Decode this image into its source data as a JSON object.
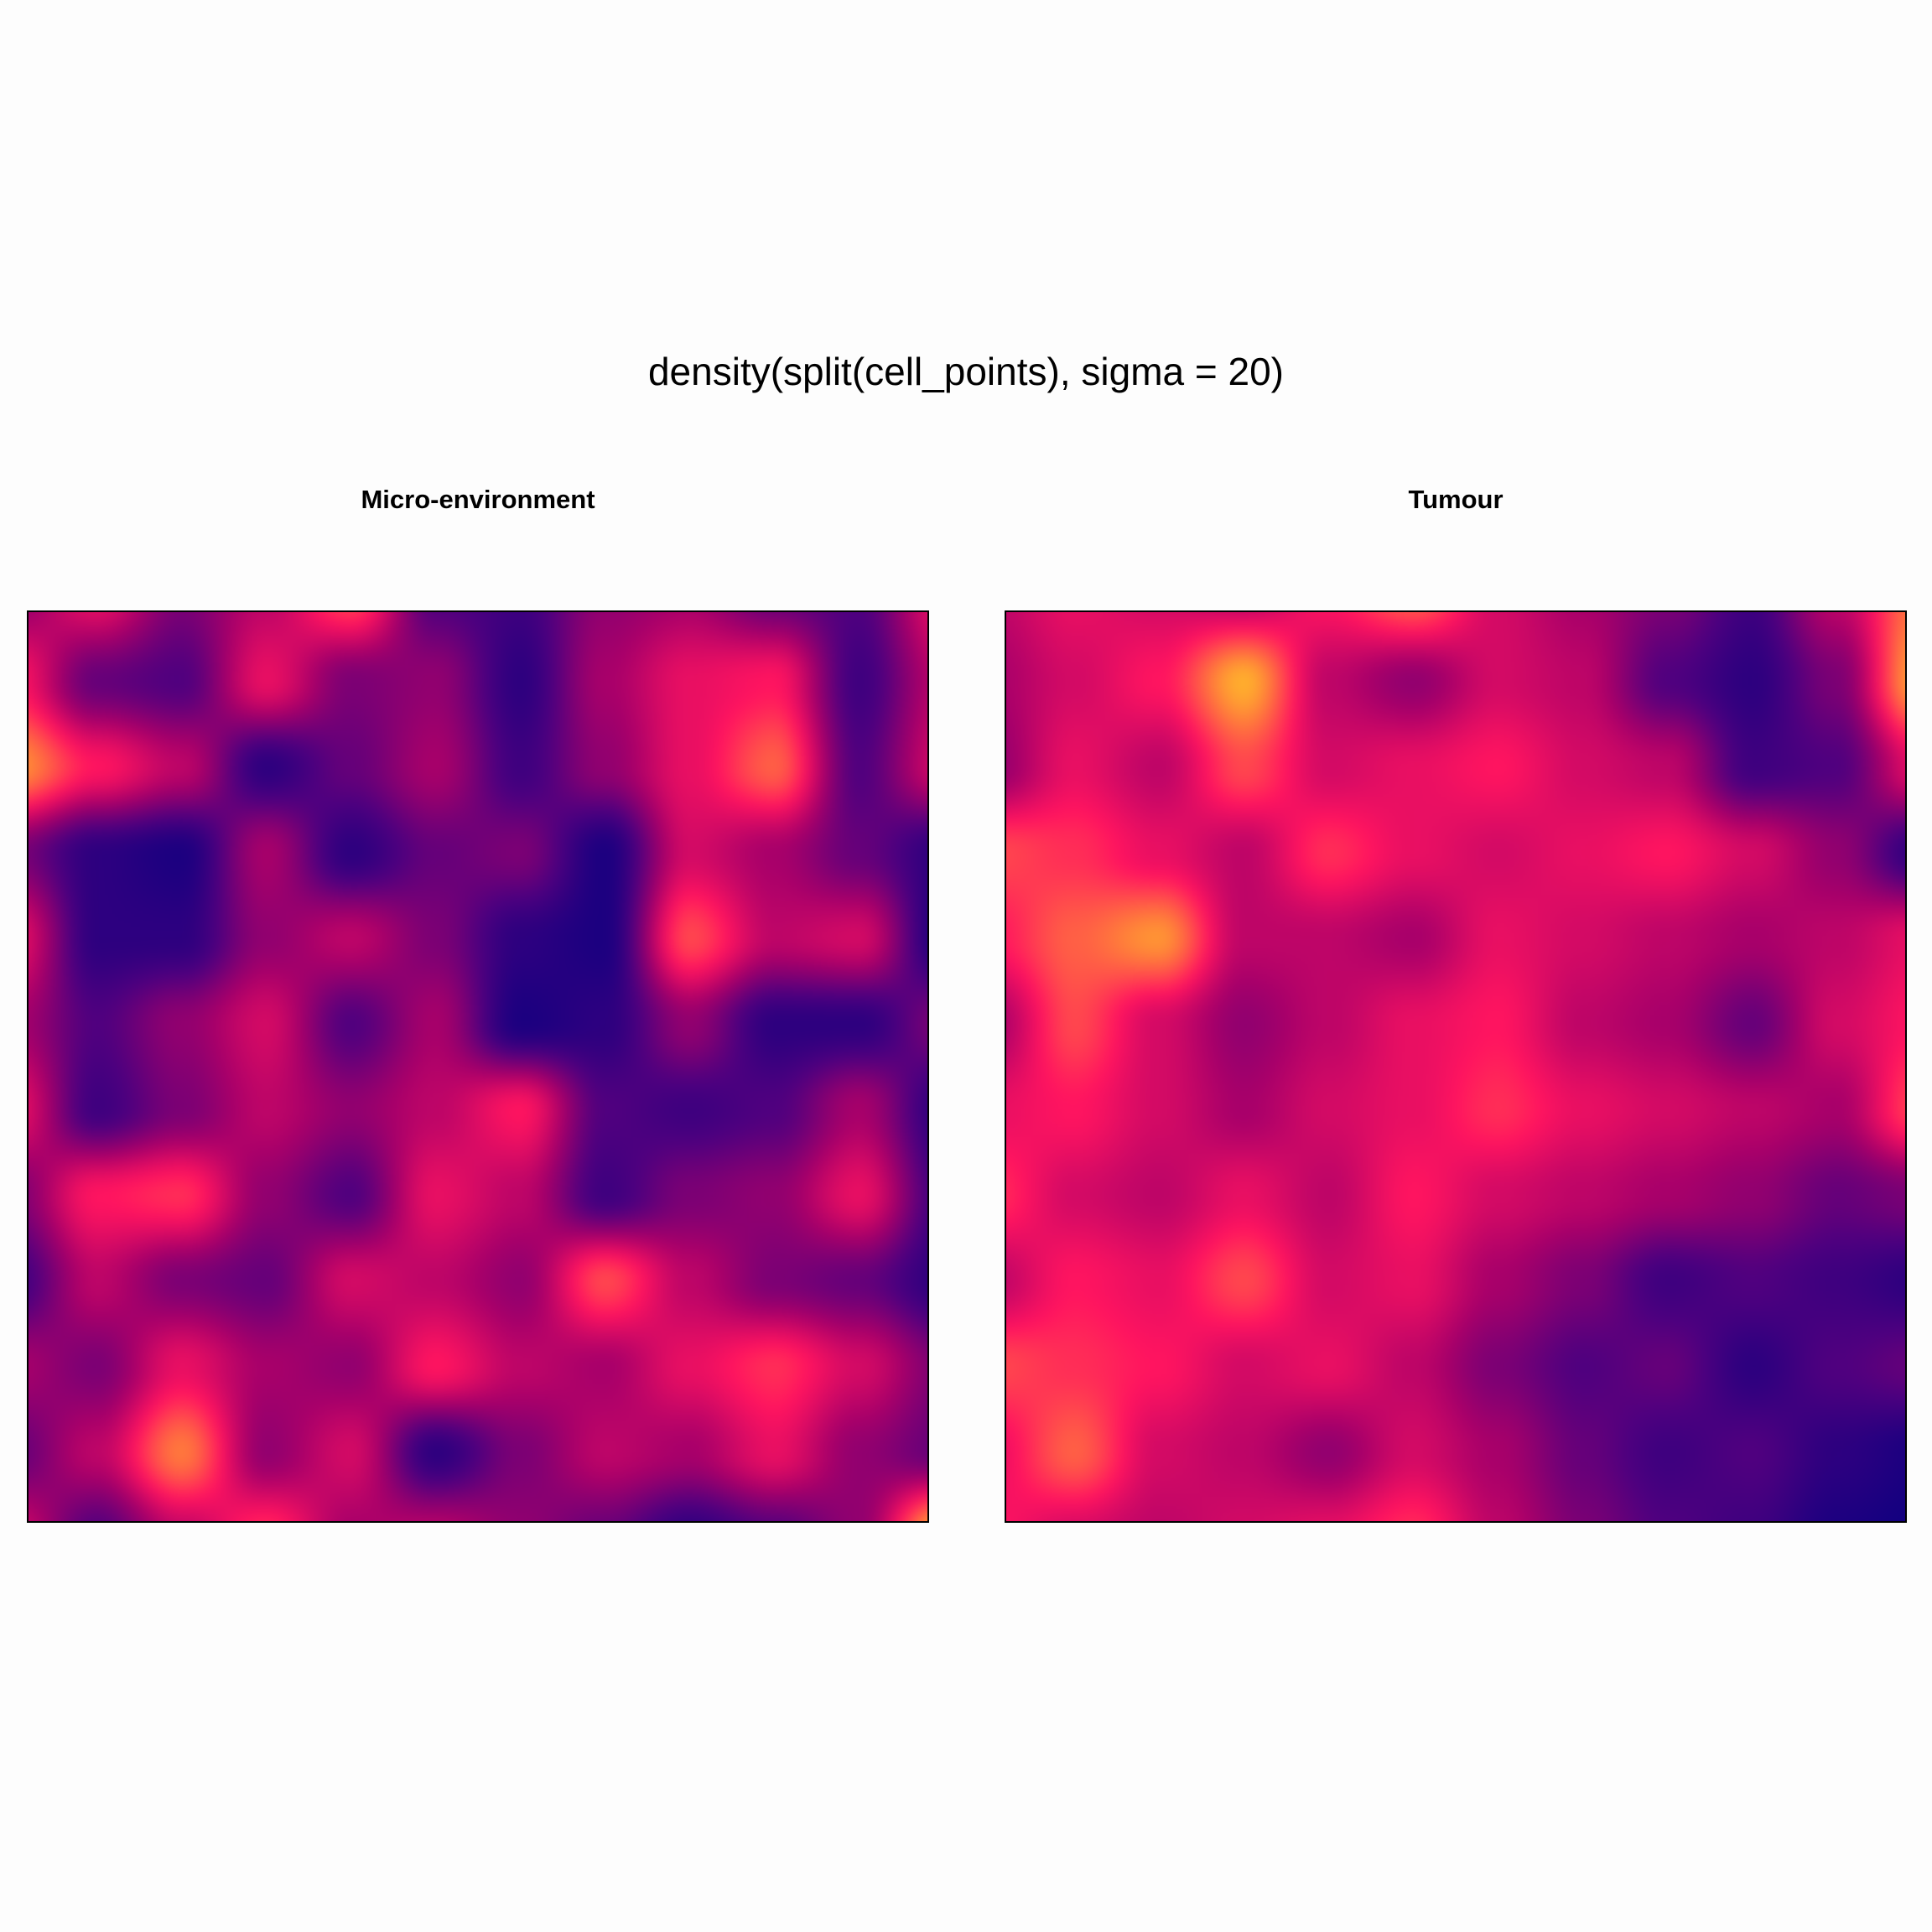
{
  "title": "density(split(cell_points), sigma = 20)",
  "chart_data": [
    {
      "type": "heatmap",
      "title": "Micro-environment",
      "colormap": [
        "#0a0080",
        "#50007f",
        "#a8006a",
        "#ff1460",
        "#ff7a3c",
        "#ffe61e"
      ],
      "grid_rows": 12,
      "grid_cols": 12,
      "values": [
        [
          0.35,
          0.55,
          0.3,
          0.45,
          0.7,
          0.2,
          0.15,
          0.35,
          0.4,
          0.25,
          0.2,
          0.55
        ],
        [
          0.6,
          0.25,
          0.2,
          0.55,
          0.3,
          0.35,
          0.1,
          0.4,
          0.55,
          0.6,
          0.15,
          0.45
        ],
        [
          0.85,
          0.6,
          0.45,
          0.1,
          0.25,
          0.4,
          0.15,
          0.35,
          0.55,
          0.75,
          0.2,
          0.5
        ],
        [
          0.3,
          0.1,
          0.05,
          0.4,
          0.1,
          0.25,
          0.3,
          0.05,
          0.5,
          0.4,
          0.25,
          0.1
        ],
        [
          0.55,
          0.1,
          0.1,
          0.35,
          0.45,
          0.3,
          0.1,
          0.05,
          0.7,
          0.45,
          0.5,
          0.05
        ],
        [
          0.4,
          0.2,
          0.35,
          0.5,
          0.2,
          0.4,
          0.05,
          0.1,
          0.35,
          0.1,
          0.1,
          0.3
        ],
        [
          0.55,
          0.15,
          0.3,
          0.45,
          0.35,
          0.45,
          0.6,
          0.2,
          0.15,
          0.2,
          0.4,
          0.1
        ],
        [
          0.3,
          0.6,
          0.65,
          0.35,
          0.2,
          0.55,
          0.45,
          0.15,
          0.3,
          0.35,
          0.55,
          0.15
        ],
        [
          0.15,
          0.45,
          0.3,
          0.25,
          0.5,
          0.45,
          0.35,
          0.7,
          0.45,
          0.3,
          0.25,
          0.1
        ],
        [
          0.4,
          0.3,
          0.55,
          0.4,
          0.35,
          0.6,
          0.45,
          0.4,
          0.55,
          0.65,
          0.5,
          0.3
        ],
        [
          0.25,
          0.45,
          0.8,
          0.35,
          0.5,
          0.1,
          0.3,
          0.45,
          0.4,
          0.55,
          0.35,
          0.25
        ],
        [
          0.5,
          0.2,
          0.45,
          0.65,
          0.4,
          0.45,
          0.35,
          0.25,
          0.1,
          0.2,
          0.35,
          0.95
        ]
      ]
    },
    {
      "type": "heatmap",
      "title": "Tumour",
      "colormap": [
        "#0a0080",
        "#50007f",
        "#a8006a",
        "#ff1460",
        "#ff7a3c",
        "#ffe61e"
      ],
      "grid_rows": 12,
      "grid_cols": 12,
      "values": [
        [
          0.45,
          0.55,
          0.5,
          0.45,
          0.6,
          0.75,
          0.5,
          0.4,
          0.3,
          0.15,
          0.45,
          0.8
        ],
        [
          0.4,
          0.5,
          0.6,
          0.9,
          0.45,
          0.35,
          0.5,
          0.45,
          0.2,
          0.1,
          0.3,
          0.9
        ],
        [
          0.35,
          0.55,
          0.45,
          0.7,
          0.5,
          0.55,
          0.6,
          0.5,
          0.45,
          0.15,
          0.2,
          0.55
        ],
        [
          0.7,
          0.65,
          0.55,
          0.45,
          0.65,
          0.55,
          0.5,
          0.55,
          0.6,
          0.5,
          0.35,
          0.1
        ],
        [
          0.6,
          0.75,
          0.85,
          0.45,
          0.45,
          0.4,
          0.55,
          0.5,
          0.45,
          0.4,
          0.45,
          0.55
        ],
        [
          0.4,
          0.7,
          0.5,
          0.35,
          0.45,
          0.55,
          0.6,
          0.45,
          0.4,
          0.25,
          0.5,
          0.6
        ],
        [
          0.55,
          0.6,
          0.5,
          0.4,
          0.5,
          0.55,
          0.65,
          0.55,
          0.5,
          0.45,
          0.4,
          0.7
        ],
        [
          0.65,
          0.5,
          0.45,
          0.55,
          0.45,
          0.6,
          0.5,
          0.45,
          0.4,
          0.35,
          0.25,
          0.3
        ],
        [
          0.45,
          0.6,
          0.55,
          0.7,
          0.5,
          0.55,
          0.4,
          0.3,
          0.15,
          0.2,
          0.15,
          0.1
        ],
        [
          0.7,
          0.65,
          0.6,
          0.5,
          0.55,
          0.45,
          0.3,
          0.2,
          0.25,
          0.1,
          0.2,
          0.25
        ],
        [
          0.55,
          0.75,
          0.5,
          0.45,
          0.35,
          0.5,
          0.4,
          0.25,
          0.15,
          0.2,
          0.1,
          0.05
        ],
        [
          0.6,
          0.5,
          0.45,
          0.5,
          0.55,
          0.65,
          0.45,
          0.3,
          0.2,
          0.15,
          0.05,
          0.02
        ]
      ]
    }
  ]
}
